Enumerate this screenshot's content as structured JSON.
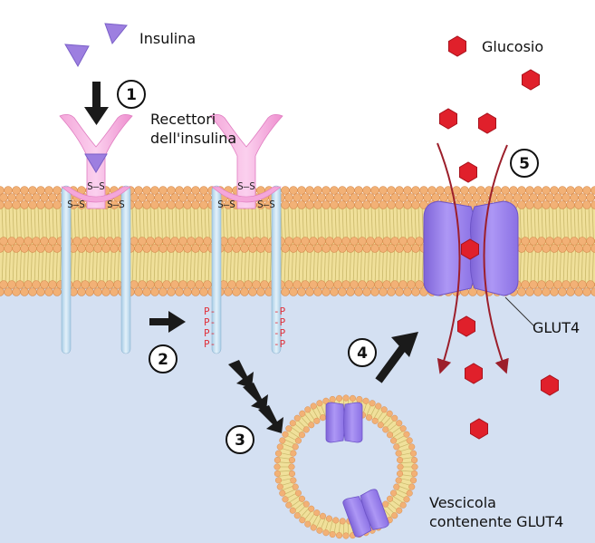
{
  "labels": {
    "insulin": "Insulina",
    "glucose": "Glucosio",
    "receptors_line1": "Recettori",
    "receptors_line2": "dell'insulina",
    "glut4": "GLUT4",
    "vesicle_line1": "Vescicola",
    "vesicle_line2": "contenente GLUT4"
  },
  "steps": [
    "1",
    "2",
    "3",
    "4",
    "5"
  ],
  "receptor_marks": {
    "disulfide_top": "S–S",
    "disulfide_left": "S–S",
    "disulfide_right": "S–S",
    "phospho_left": [
      "P-",
      "P-",
      "P-",
      "P-"
    ],
    "phospho_right": [
      "-P",
      "-P",
      "-P",
      "-P"
    ]
  },
  "colors": {
    "extracellular": "#ffffff",
    "cytoplasm": "#d4e0f2",
    "lipid_head": "#f2b176",
    "lipid_tail": "#f0e09a",
    "receptor": "#f2a0d6",
    "receptor_stalk": "#c2ddef",
    "insulin": "#9d7fe0",
    "glut4": "#9b80ee",
    "glucose": "#e0202b",
    "arrow": "#1a1a1a",
    "flux_arrow": "#9c1f2b"
  }
}
